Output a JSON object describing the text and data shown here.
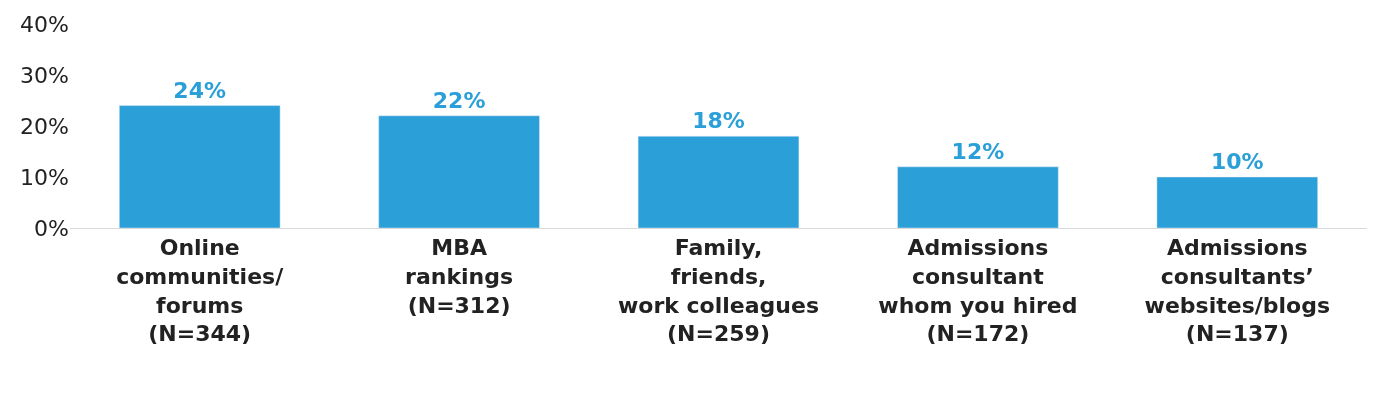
{
  "chart_data": {
    "type": "bar",
    "categories": [
      "Online\ncommunities/\nforums\n(N=344)",
      "MBA\nrankings\n(N=312)",
      "Family,\nfriends,\nwork colleagues\n(N=259)",
      "Admissions\nconsultant\nwhom you hired\n(N=172)",
      "Admissions\nconsultants’\nwebsites/blogs\n(N=137)"
    ],
    "values": [
      24,
      22,
      18,
      12,
      10
    ],
    "value_labels": [
      "24%",
      "22%",
      "18%",
      "12%",
      "10%"
    ],
    "color": "#2a9fd8",
    "ylim": [
      0,
      40
    ],
    "yticks": [
      {
        "value": 0,
        "label": "0%"
      },
      {
        "value": 10,
        "label": "10%"
      },
      {
        "value": 20,
        "label": "20%"
      },
      {
        "value": 30,
        "label": "30%"
      },
      {
        "value": 40,
        "label": "40%"
      }
    ]
  }
}
